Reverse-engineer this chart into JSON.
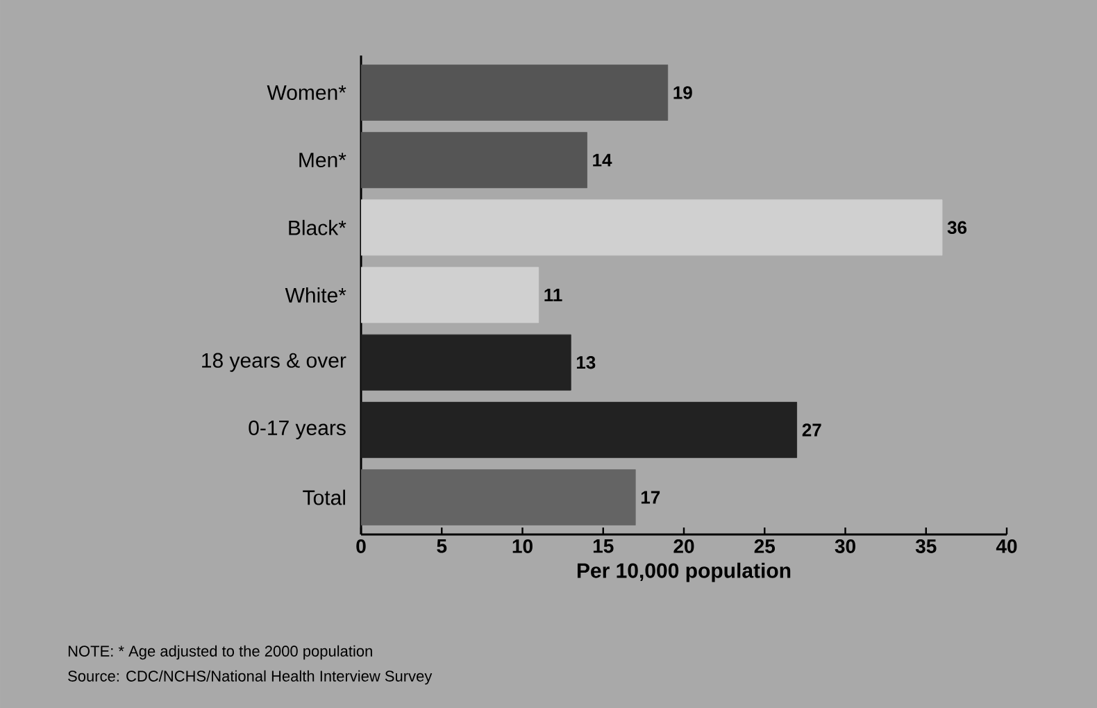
{
  "chart_data": {
    "type": "bar",
    "orientation": "horizontal",
    "categories": [
      "Women*",
      "Men*",
      "Black*",
      "White*",
      "18 years & over",
      "0-17 years",
      "Total"
    ],
    "values": [
      19,
      14,
      36,
      11,
      13,
      27,
      17
    ],
    "colors": [
      "#555555",
      "#555555",
      "#d0d0d0",
      "#d0d0d0",
      "#222222",
      "#222222",
      "#646464"
    ],
    "xlim": [
      0,
      40
    ],
    "xticks": [
      0,
      5,
      10,
      15,
      20,
      25,
      30,
      35,
      40
    ],
    "xlabel": "Per 10,000 population",
    "data_labels": true,
    "grid": false,
    "annotations": [
      "NOTE: * Age adjusted to the 2000 population",
      "Source: CDC/NCHS/National Health Interview Survey"
    ]
  }
}
